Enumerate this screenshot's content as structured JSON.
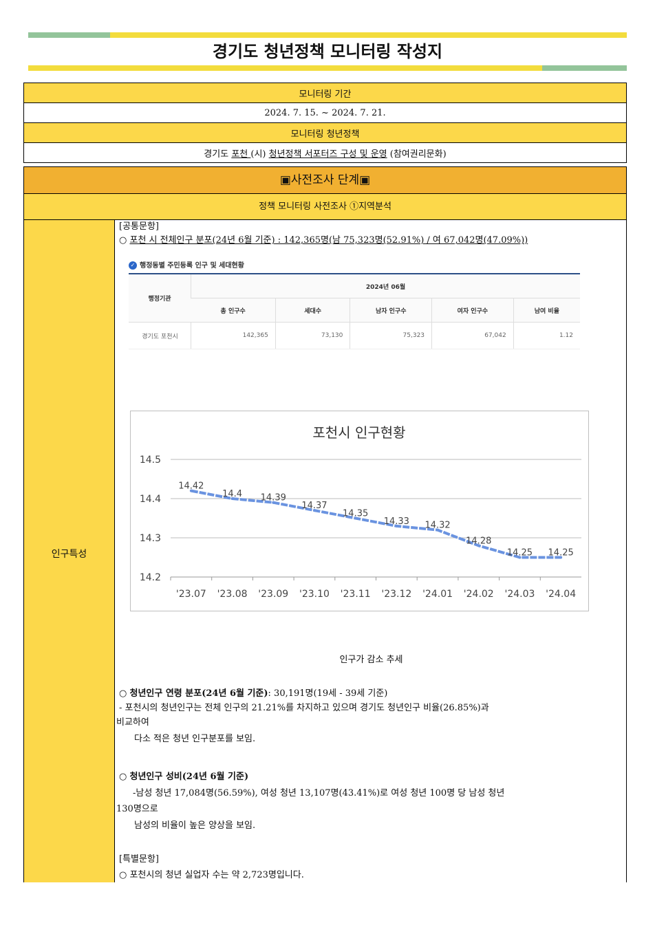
{
  "header": {
    "title": "경기도 청년정책 모니터링 작성지"
  },
  "info": {
    "period_label": "모니터링 기간",
    "period_value": "2024. 7. 15. ~ 2024. 7. 21.",
    "policy_label": "모니터링 청년정책",
    "policy_prefix": "경기도 ",
    "policy_city": " 포천 ",
    "policy_city_suffix": "(시) ",
    "policy_name": " 청년정책 서포터즈 구성 및 운영",
    "policy_category": " (참여권리문화)"
  },
  "section": {
    "stage": "▣사전조사 단계▣",
    "subtitle": "정책 모니터링 사전조사 ①지역분석",
    "row_label": "인구특성"
  },
  "content": {
    "common_label": "[공통문항]",
    "pop_bullet": "○ ",
    "pop_heading": "포천 시 전체인구 분포(24년 6월 기준)",
    "pop_value": " : 142,365명(남 75,323명(52.91%) / 여 67,042명(47.09%))",
    "table_title": "행정동별 주민등록 인구 및 세대현황",
    "table": {
      "agency_header": "행정기관",
      "period_header": "2024년 06월",
      "columns": [
        "총 인구수",
        "세대수",
        "남자 인구수",
        "여자 인구수",
        "남여 비율"
      ],
      "row": [
        "경기도 포천시",
        "142,365",
        "73,130",
        "75,323",
        "67,042",
        "1.12"
      ]
    },
    "trend_caption": "인구가 감소 추세",
    "youth_age_bullet": "○ ",
    "youth_age_heading": "청년인구 연령 분포(24년 6월 기준)",
    "youth_age_value": ": 30,191명(19세 - 39세 기준)",
    "youth_age_desc1": "- 포천시의 청년인구는 전체 인구의 21.21%를 차지하고 있으며 경기도 청년인구 비율(26.85%)과",
    "youth_age_desc2": "비교하여",
    "youth_age_desc3": "다소 적은 청년 인구분포를 보임.",
    "youth_sex_bullet": "○ ",
    "youth_sex_heading": "청년인구 성비(24년 6월 기준)",
    "youth_sex_desc1": "-남성 청년 17,084명(56.59%), 여성 청년 13,107명(43.41%)로 여성 청년 100명 당 남성 청년",
    "youth_sex_desc2": "130명으로",
    "youth_sex_desc3": "남성의 비율이 높은 양상을 보임.",
    "special_label": "[특별문항]",
    "special_line": "○  포천시의 청년 실업자 수는 약 2,723명입니다."
  },
  "colors": {
    "yellow": "#fcd84a",
    "orange": "#f1b031",
    "green": "#93c49a",
    "line": "#6a93e0"
  },
  "chart_data": {
    "type": "line",
    "title": "포천시 인구현황",
    "categories": [
      "'23.07",
      "'23.08",
      "'23.09",
      "'23.10",
      "'23.11",
      "'23.12",
      "'24.01",
      "'24.02",
      "'24.03",
      "'24.04"
    ],
    "values": [
      14.42,
      14.4,
      14.39,
      14.37,
      14.35,
      14.33,
      14.32,
      14.28,
      14.25,
      14.25
    ],
    "ylim": [
      14.2,
      14.5
    ],
    "yticks": [
      "14.2",
      "14.3",
      "14.4",
      "14.5"
    ],
    "grid": true,
    "xlabel": "",
    "ylabel": ""
  }
}
